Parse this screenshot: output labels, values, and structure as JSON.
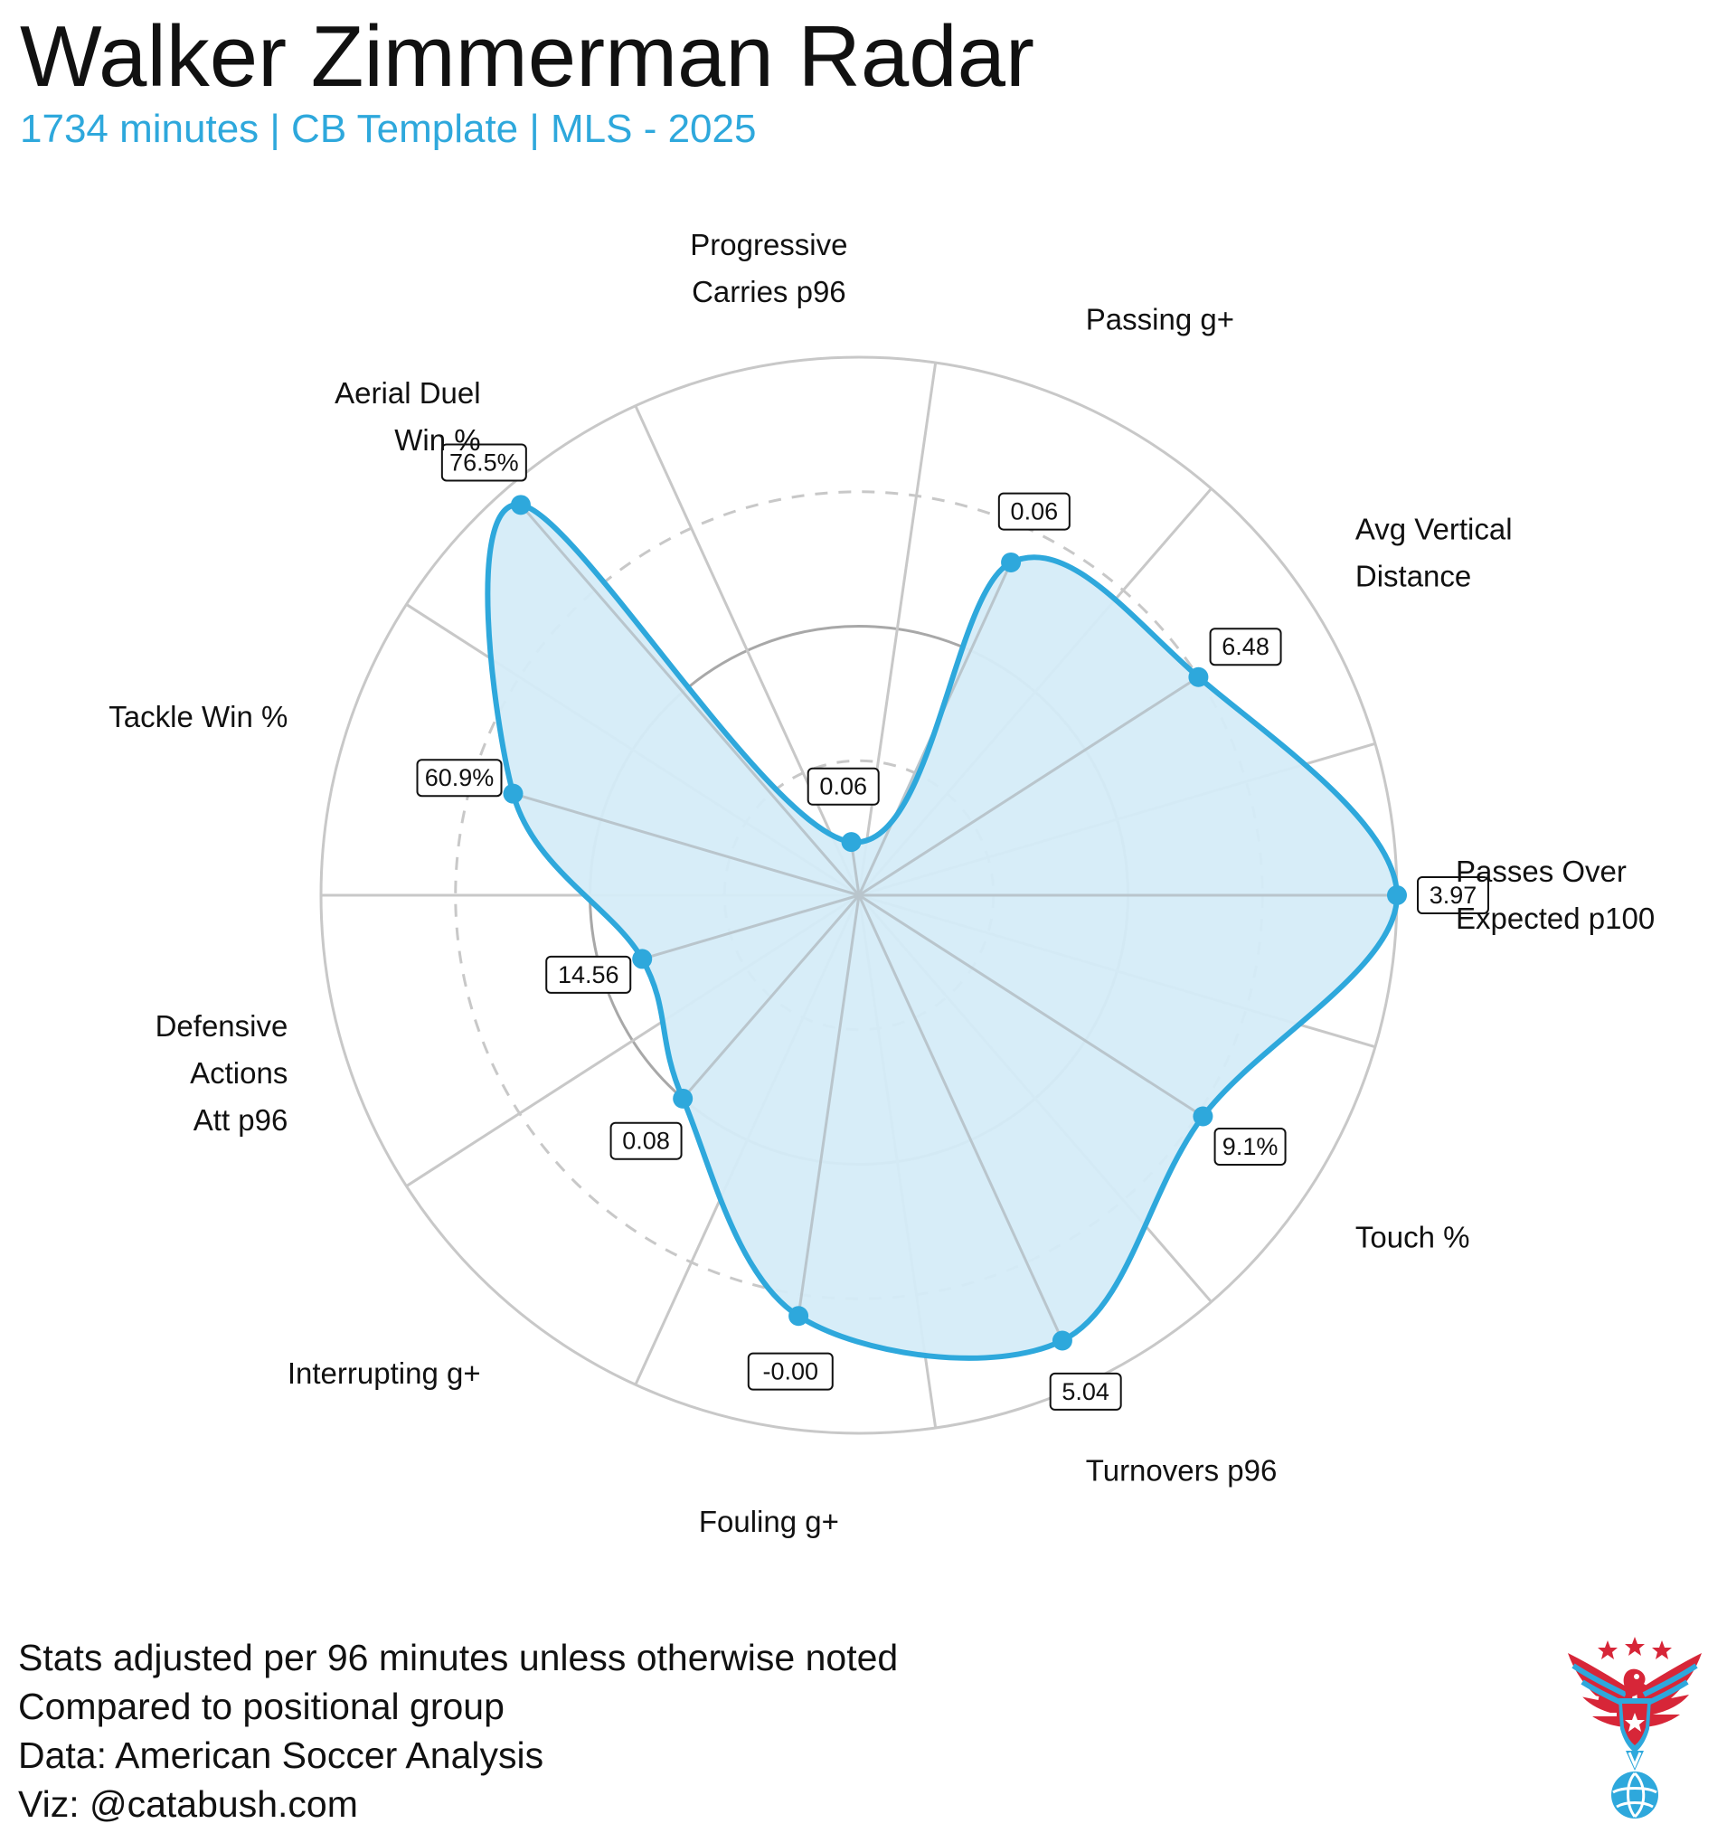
{
  "header": {
    "title": "Walker Zimmerman Radar",
    "subtitle": "1734 minutes | CB Template | MLS - 2025"
  },
  "chart_data": {
    "type": "radar",
    "title": "Walker Zimmerman Radar",
    "subtitle": "1734 minutes | CB Template | MLS - 2025",
    "range": [
      0,
      100
    ],
    "rings": [
      25,
      50,
      75,
      100
    ],
    "grid": true,
    "axes": [
      {
        "label": [
          "Passes Over",
          "Expected p100"
        ],
        "value_label": "3.97",
        "percentile": 100
      },
      {
        "label": [
          "Avg Vertical",
          "Distance"
        ],
        "value_label": "6.48",
        "percentile": 75
      },
      {
        "label": [
          "Passing g+"
        ],
        "value_label": "0.06",
        "percentile": 68
      },
      {
        "label": [
          "Progressive",
          "Carries p96"
        ],
        "value_label": "0.06",
        "percentile": 10
      },
      {
        "label": [
          "Aerial Duel",
          "Win %"
        ],
        "value_label": "76.5%",
        "percentile": 96
      },
      {
        "label": [
          "Tackle Win %"
        ],
        "value_label": "60.9%",
        "percentile": 67
      },
      {
        "label": [
          "Defensive",
          "Actions",
          "Att p96"
        ],
        "value_label": "14.56",
        "percentile": 42
      },
      {
        "label": [
          "Interrupting g+"
        ],
        "value_label": "0.08",
        "percentile": 50
      },
      {
        "label": [
          "Fouling g+"
        ],
        "value_label": "-0.00",
        "percentile": 79
      },
      {
        "label": [
          "Turnovers p96"
        ],
        "value_label": "5.04",
        "percentile": 91
      },
      {
        "label": [
          "Touch %"
        ],
        "value_label": "9.1%",
        "percentile": 76
      }
    ],
    "colors": {
      "line": "#2ea8dc",
      "fill": "#d5ecf8",
      "grid": "#c8c8c8",
      "inner_ring": "#a8a8a8"
    }
  },
  "footer": {
    "lines": [
      "Stats adjusted per 96 minutes unless otherwise noted",
      "Compared to positional group",
      "Data: American Soccer Analysis",
      "Viz: @catabush.com"
    ]
  },
  "logo": {
    "icon": "eagle-soccer-logo"
  }
}
